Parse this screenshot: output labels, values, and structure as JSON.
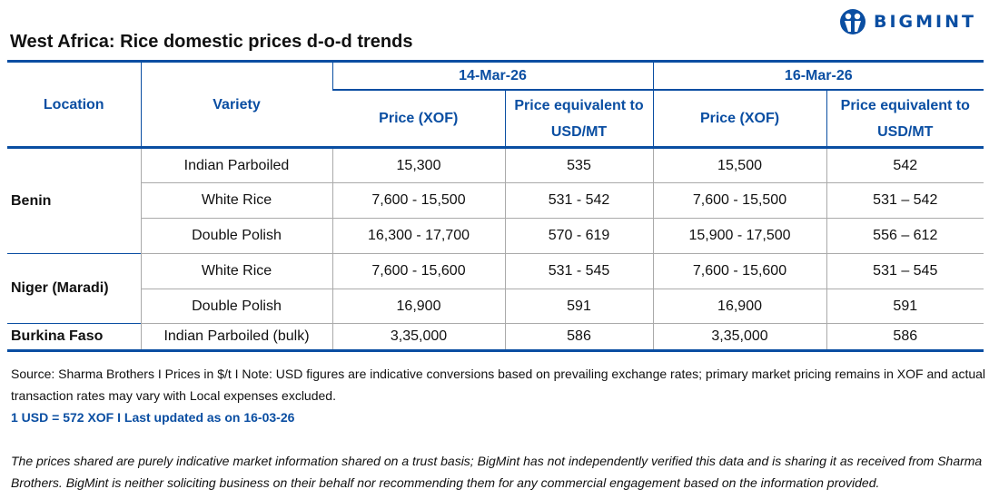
{
  "brand": {
    "name": "BIGMINT",
    "color": "#0a4ea2"
  },
  "title": "West Africa: Rice domestic prices d-o-d trends",
  "table": {
    "headers": {
      "location": "Location",
      "variety": "Variety",
      "dates": [
        {
          "date": "14-Mar-26",
          "price": "Price (XOF)",
          "usd": "Price equivalent to USD/MT"
        },
        {
          "date": "16-Mar-26",
          "price": "Price (XOF)",
          "usd": "Price equivalent to USD/MT"
        }
      ]
    },
    "groups": [
      {
        "location": "Benin",
        "rows": [
          {
            "variety": "Indian Parboiled",
            "p1": "15,300",
            "u1": "535",
            "p2": "15,500",
            "u2": "542"
          },
          {
            "variety": "White Rice",
            "p1": "7,600 - 15,500",
            "u1": "531 - 542",
            "p2": "7,600 - 15,500",
            "u2": "531 – 542"
          },
          {
            "variety": "Double Polish",
            "p1": "16,300 - 17,700",
            "u1": "570 - 619",
            "p2": "15,900 - 17,500",
            "u2": "556 – 612"
          }
        ]
      },
      {
        "location": "Niger (Maradi)",
        "rows": [
          {
            "variety": "White Rice",
            "p1": "7,600 - 15,600",
            "u1": "531 - 545",
            "p2": "7,600 - 15,600",
            "u2": "531 – 545"
          },
          {
            "variety": "Double Polish",
            "p1": "16,900",
            "u1": "591",
            "p2": "16,900",
            "u2": "591"
          }
        ]
      },
      {
        "location": "Burkina Faso",
        "rows": [
          {
            "variety": "Indian Parboiled (bulk)",
            "p1": "3,35,000",
            "u1": "586",
            "p2": "3,35,000",
            "u2": "586"
          }
        ]
      }
    ]
  },
  "notes": {
    "source": "Source: Sharma Brothers I Prices in $/t I Note: USD figures are indicative conversions based on prevailing exchange rates; primary market pricing remains in XOF and actual transaction rates may vary with Local expenses excluded.",
    "rate": "1 USD = 572 XOF I Last updated as on 16-03-26",
    "disclaimer": "The prices shared are purely indicative market information shared on a trust basis; BigMint has not independently verified this data and is sharing it as received from Sharma Brothers. BigMint is neither soliciting business on their behalf nor recommending them for any commercial engagement based on the information provided."
  }
}
